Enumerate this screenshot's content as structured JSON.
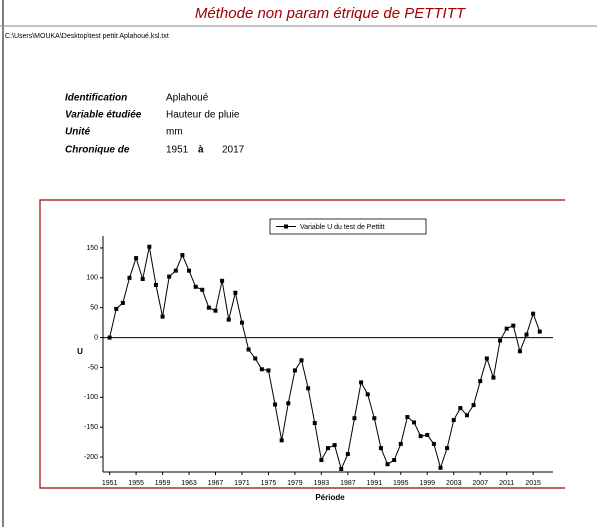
{
  "header": {
    "title": "Méthode non param étrique de PETTITT",
    "path": "C:\\Users\\MOUKA\\Desktop\\test pettit Aplahoué.ksl.txt",
    "info": [
      {
        "label": "Identification",
        "value": "Aplahoué"
      },
      {
        "label": "Variable étudiée",
        "value": "Hauteur de pluie"
      },
      {
        "label": "Unité",
        "value": "mm"
      },
      {
        "label": "Chronique de",
        "from": "1951",
        "sep": "à",
        "to": "2017"
      }
    ]
  },
  "chart_data": {
    "type": "line",
    "xlabel": "Période",
    "ylabel": "U",
    "series": [
      {
        "name": "Variable U du test de Pettitt",
        "color": "#000000",
        "x": [
          1951,
          1952,
          1953,
          1954,
          1955,
          1956,
          1957,
          1958,
          1959,
          1960,
          1961,
          1962,
          1963,
          1964,
          1965,
          1966,
          1967,
          1968,
          1969,
          1970,
          1971,
          1972,
          1973,
          1974,
          1975,
          1976,
          1977,
          1978,
          1979,
          1980,
          1981,
          1982,
          1983,
          1984,
          1985,
          1986,
          1987,
          1988,
          1989,
          1990,
          1991,
          1992,
          1993,
          1994,
          1995,
          1996,
          1997,
          1998,
          1999,
          2000,
          2001,
          2002,
          2003,
          2004,
          2005,
          2006,
          2007,
          2008,
          2009,
          2010,
          2011,
          2012,
          2013,
          2014,
          2015,
          2016
        ],
        "values": [
          0,
          48,
          58,
          100,
          133,
          98,
          152,
          88,
          35,
          102,
          112,
          138,
          112,
          85,
          80,
          50,
          45,
          95,
          30,
          75,
          25,
          -20,
          -35,
          -53,
          -55,
          -112,
          -172,
          -110,
          -55,
          -38,
          -85,
          -143,
          -205,
          -185,
          -180,
          -220,
          -195,
          -135,
          -75,
          -95,
          -135,
          -185,
          -212,
          -205,
          -178,
          -133,
          -142,
          -165,
          -163,
          -178,
          -218,
          -185,
          -138,
          -118,
          -130,
          -113,
          -73,
          -35,
          -67,
          -5,
          15,
          20,
          -23,
          5,
          40,
          10
        ]
      }
    ],
    "xlim": [
      1950,
      2018
    ],
    "xticks": [
      1951,
      1955,
      1959,
      1963,
      1967,
      1971,
      1975,
      1979,
      1983,
      1987,
      1991,
      1995,
      1999,
      2003,
      2007,
      2011,
      2015
    ],
    "ylim": [
      -225,
      170
    ],
    "yticks": [
      150,
      100,
      50,
      0,
      -50,
      -100,
      -150,
      -200
    ],
    "zero_line": true
  }
}
